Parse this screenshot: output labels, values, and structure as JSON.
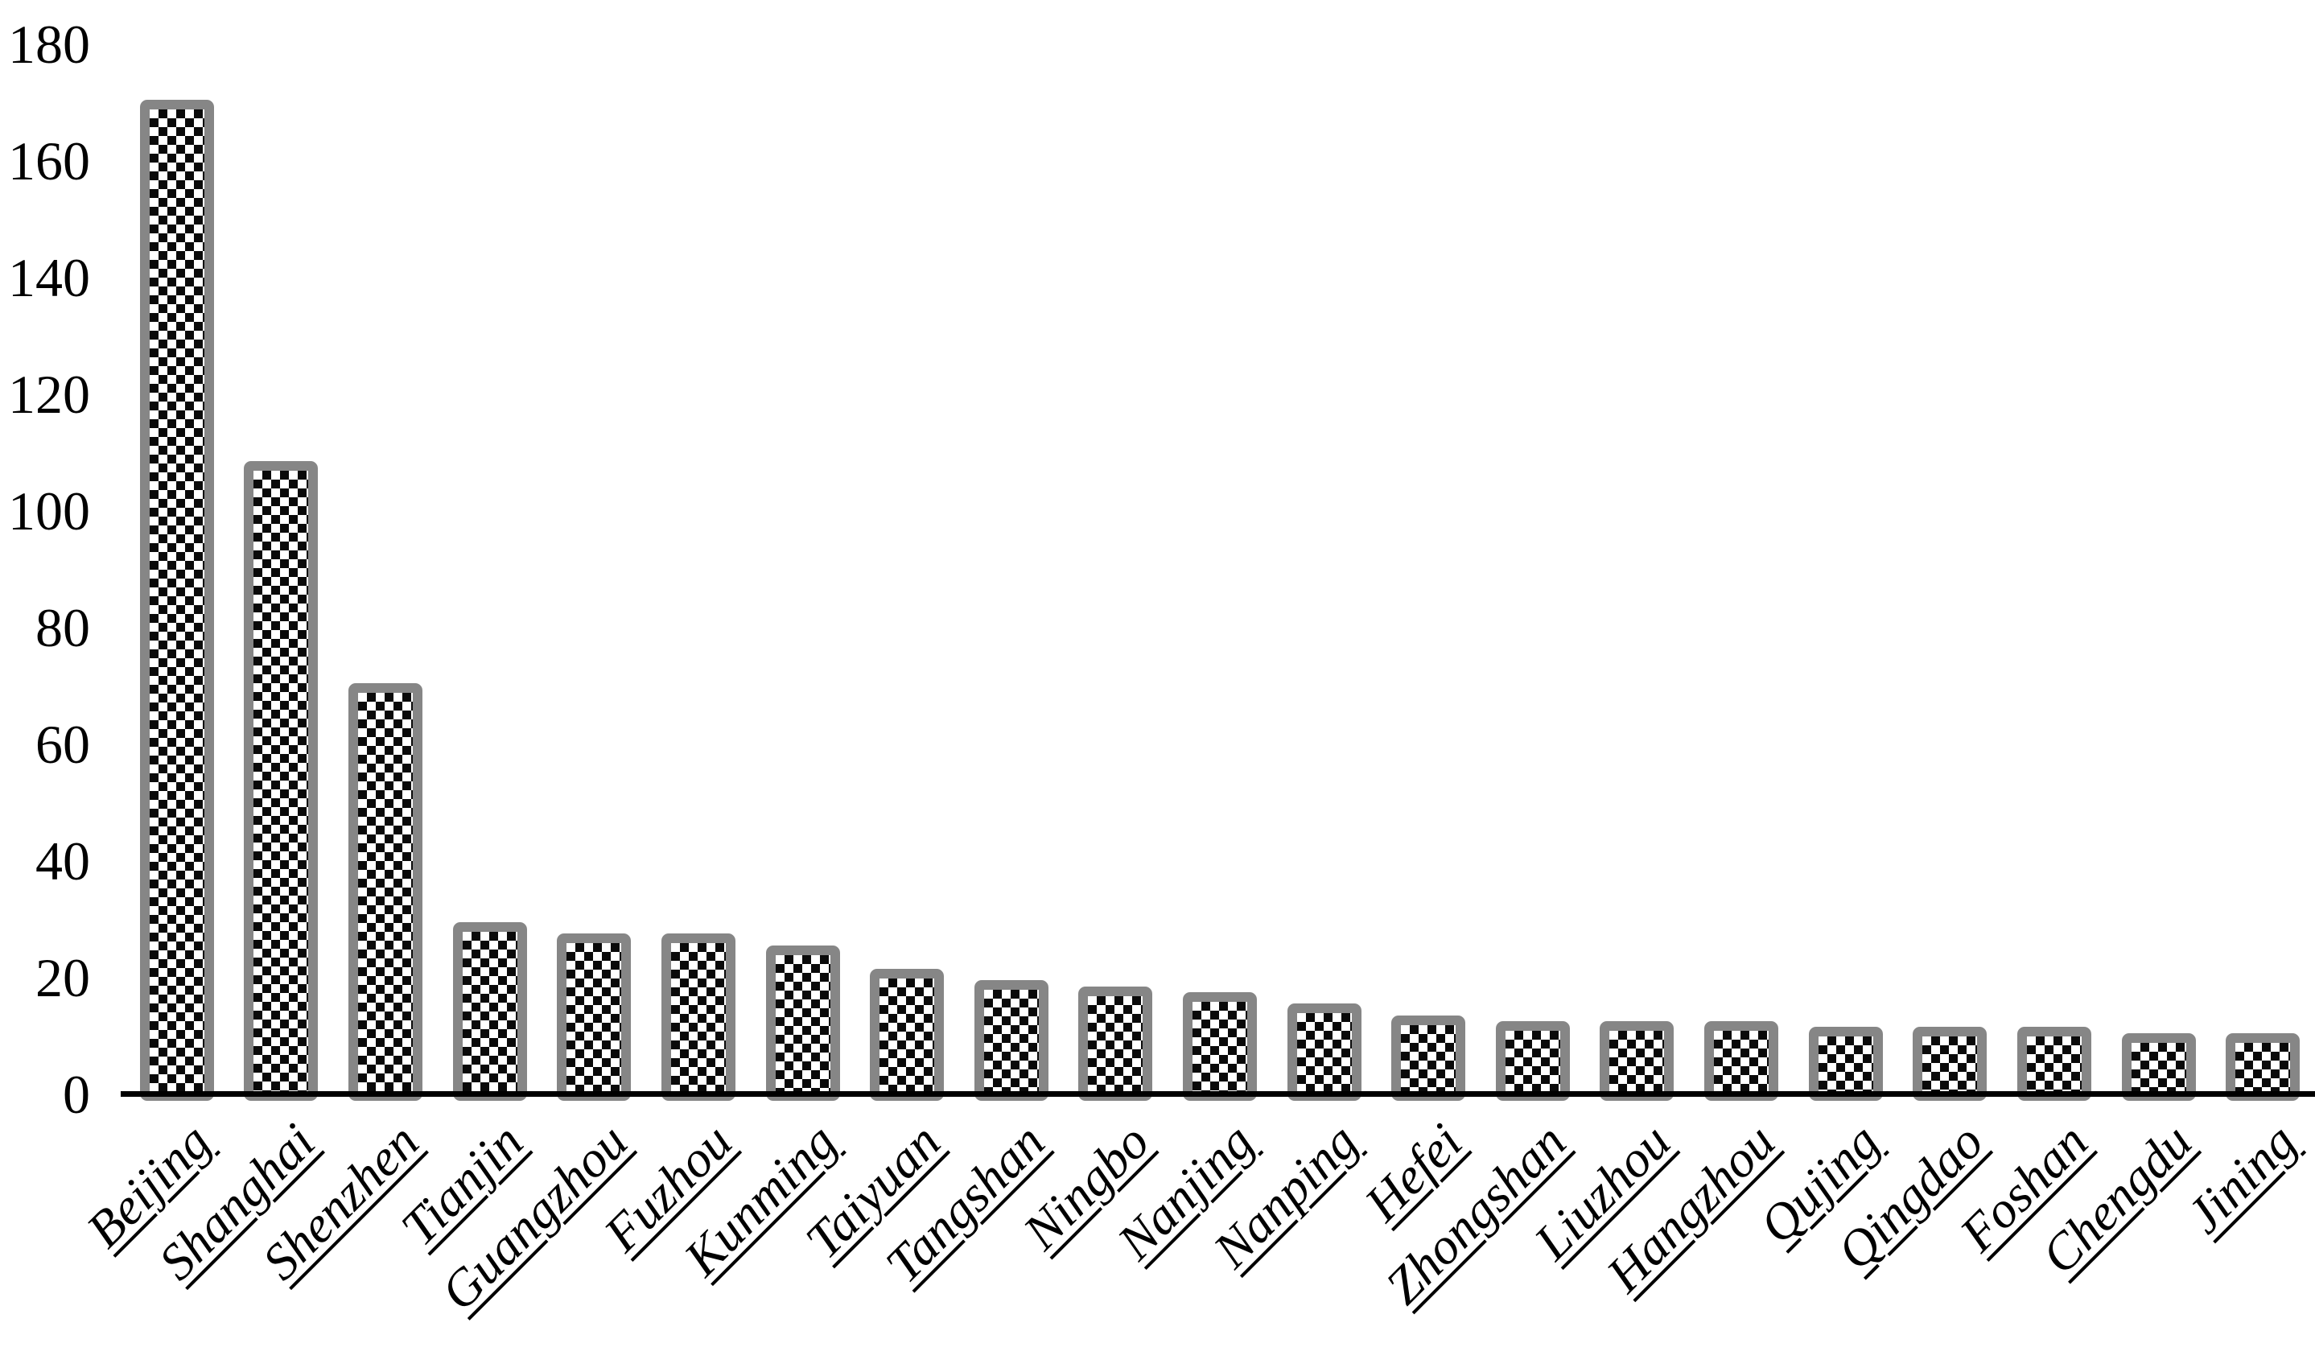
{
  "figure": {
    "background_color": "#ffffff",
    "axis_color": "#000000",
    "text_color": "#000000",
    "bar_border_color": "#868686",
    "bar_pattern": "diamond-checkerboard",
    "bar_pattern_color": "#0a0a0a",
    "bar_fill_background": "#ffffff"
  },
  "chart_data": {
    "type": "bar",
    "title": "",
    "xlabel": "",
    "ylabel": "",
    "categories": [
      "Beijing",
      "Shanghai",
      "Shenzhen",
      "Tianjin",
      "Guangzhou",
      "Fuzhou",
      "Kunming",
      "Taiyuan",
      "Tangshan",
      "Ningbo",
      "Nanjing",
      "Nanping",
      "Hefei",
      "Zhongshan",
      "Liuzhou",
      "Hangzhou",
      "Qujing",
      "Qingdao",
      "Foshan",
      "Chengdu",
      "Jining"
    ],
    "values": [
      170,
      108,
      70,
      29,
      27,
      27,
      25,
      21,
      19,
      18,
      17,
      15,
      13,
      12,
      12,
      12,
      11,
      11,
      11,
      10,
      10
    ],
    "ylim": [
      0,
      180
    ],
    "yticks": [
      0,
      20,
      40,
      60,
      80,
      100,
      120,
      140,
      160,
      180
    ],
    "grid": "off",
    "legend": "none",
    "x_tick_label_rotation_deg": -45,
    "x_tick_label_style": "italic underlined serif",
    "bar_outline": "thick gray",
    "bar_fill": "black-and-white diamond checker pattern"
  }
}
